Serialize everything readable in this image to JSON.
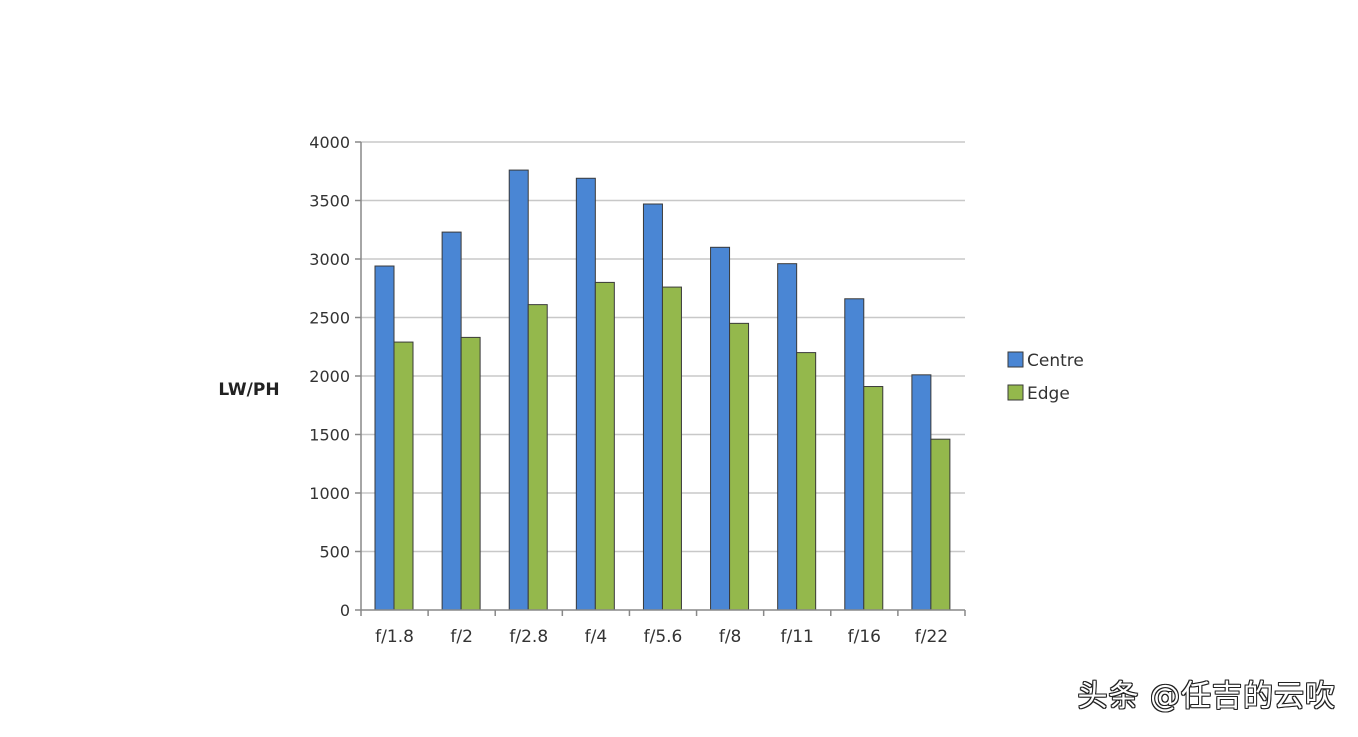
{
  "chart_data": {
    "type": "bar",
    "title": "",
    "xlabel": "",
    "ylabel": "LW/PH",
    "categories": [
      "f/1.8",
      "f/2",
      "f/2.8",
      "f/4",
      "f/5.6",
      "f/8",
      "f/11",
      "f/16",
      "f/22"
    ],
    "series": [
      {
        "name": "Centre",
        "color": "#4a86d4",
        "values": [
          2940,
          3230,
          3760,
          3690,
          3470,
          3100,
          2960,
          2660,
          2010
        ]
      },
      {
        "name": "Edge",
        "color": "#94b84c",
        "values": [
          2290,
          2330,
          2610,
          2800,
          2760,
          2450,
          2200,
          1910,
          1460
        ]
      }
    ],
    "ylim": [
      0,
      4000
    ],
    "yticks": [
      0,
      500,
      1000,
      1500,
      2000,
      2500,
      3000,
      3500,
      4000
    ],
    "grid": true,
    "legend_position": "right"
  },
  "watermark": {
    "text": "头条 @任吉的云吹"
  }
}
